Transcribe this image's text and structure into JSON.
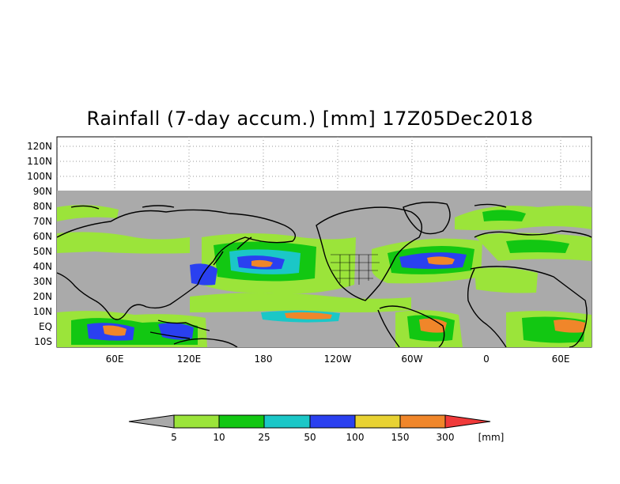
{
  "title": "Rainfall (7-day accum.) [mm] 17Z05Dec2018",
  "lat_labels": [
    "120N",
    "110N",
    "100N",
    "90N",
    "80N",
    "70N",
    "60N",
    "50N",
    "40N",
    "30N",
    "20N",
    "10N",
    "EQ",
    "10S"
  ],
  "lon_labels": [
    "60E",
    "120E",
    "180",
    "120W",
    "60W",
    "0",
    "60E"
  ],
  "colorbar": {
    "unit": "[mm]",
    "thresholds": [
      "5",
      "10",
      "25",
      "50",
      "100",
      "150",
      "300"
    ],
    "colors": [
      "#a9a9a9",
      "#9be43a",
      "#12c712",
      "#1bc7c7",
      "#2a40f0",
      "#e8d233",
      "#f0862a",
      "#f03a3a"
    ]
  },
  "map": {
    "land_color": "#aaaaaa",
    "ocean_color": "#aaaaaa",
    "coast_color": "#000000"
  }
}
